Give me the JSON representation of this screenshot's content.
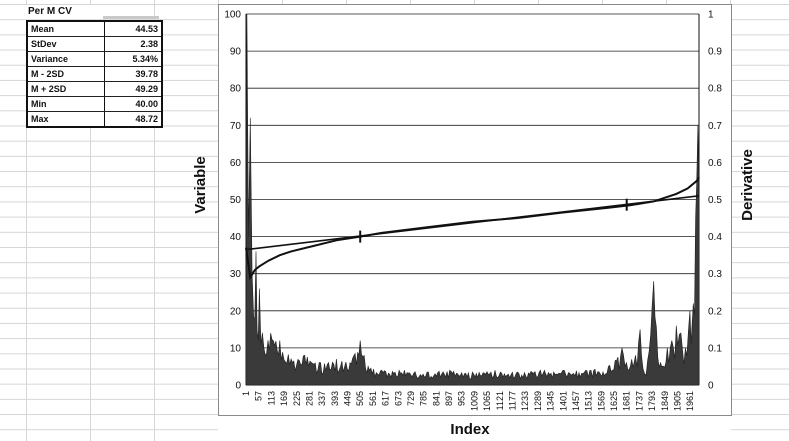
{
  "stats": {
    "title": "Per M CV",
    "rows": [
      {
        "label": "Mean",
        "value": "44.53"
      },
      {
        "label": "StDev",
        "value": "2.38"
      },
      {
        "label": "Variance",
        "value": "5.34%"
      },
      {
        "label": "M - 2SD",
        "value": "39.78"
      },
      {
        "label": "M + 2SD",
        "value": "49.29"
      },
      {
        "label": "Min",
        "value": "40.00"
      },
      {
        "label": "Max",
        "value": "48.72"
      }
    ]
  },
  "chart_data": {
    "type": "line",
    "xlabel": "Index",
    "ylabel": "Variable",
    "y2label": "Derivative",
    "ylim": [
      0,
      100
    ],
    "y2lim": [
      0,
      1
    ],
    "x_range": [
      1,
      2000
    ],
    "grid": true,
    "legend": "none",
    "yticks": [
      "0",
      "10",
      "20",
      "30",
      "40",
      "50",
      "60",
      "70",
      "80",
      "90",
      "100"
    ],
    "y2ticks": [
      "0",
      "0.1",
      "0.2",
      "0.3",
      "0.4",
      "0.5",
      "0.6",
      "0.7",
      "0.8",
      "0.9",
      "1"
    ],
    "xticks": [
      "1",
      "57",
      "113",
      "169",
      "225",
      "281",
      "337",
      "393",
      "449",
      "505",
      "561",
      "617",
      "673",
      "729",
      "785",
      "841",
      "897",
      "953",
      "1009",
      "1065",
      "1121",
      "1177",
      "1233",
      "1289",
      "1345",
      "1401",
      "1457",
      "1513",
      "1569",
      "1625",
      "1681",
      "1737",
      "1793",
      "1849",
      "1905",
      "1961"
    ],
    "series": [
      {
        "role": "variable-sorted",
        "axis": "left",
        "x": [
          1,
          20,
          40,
          60,
          100,
          150,
          200,
          300,
          400,
          505,
          600,
          800,
          1000,
          1200,
          1400,
          1600,
          1700,
          1800,
          1900,
          1950,
          1990,
          2000
        ],
        "y": [
          37,
          29,
          31,
          32,
          33.5,
          35,
          36,
          37.5,
          39,
          40,
          41,
          42.5,
          44,
          45,
          46.5,
          47.8,
          48.5,
          49.5,
          51.5,
          53,
          55,
          56
        ]
      },
      {
        "role": "linear-fit",
        "axis": "left",
        "x": [
          1,
          2000
        ],
        "y": [
          36.5,
          51
        ]
      },
      {
        "role": "derivative",
        "axis": "right",
        "x": [
          1,
          5,
          12,
          20,
          28,
          35,
          45,
          55,
          60,
          80,
          110,
          150,
          200,
          260,
          330,
          400,
          460,
          505,
          540,
          600,
          700,
          800,
          900,
          1000,
          1100,
          1200,
          1300,
          1400,
          1500,
          1600,
          1660,
          1680,
          1720,
          1740,
          1760,
          1780,
          1800,
          1830,
          1860,
          1880,
          1900,
          1920,
          1940,
          1960,
          1975,
          1985,
          1995,
          2000
        ],
        "y": [
          0.15,
          1.0,
          0.4,
          0.72,
          0.3,
          0.18,
          0.36,
          0.12,
          0.26,
          0.1,
          0.14,
          0.12,
          0.07,
          0.08,
          0.06,
          0.07,
          0.06,
          0.12,
          0.05,
          0.04,
          0.04,
          0.035,
          0.04,
          0.035,
          0.04,
          0.035,
          0.04,
          0.04,
          0.04,
          0.05,
          0.1,
          0.06,
          0.08,
          0.15,
          0.03,
          0.09,
          0.28,
          0.06,
          0.1,
          0.12,
          0.16,
          0.14,
          0.1,
          0.2,
          0.22,
          0.45,
          0.7,
          0.5
        ]
      }
    ]
  }
}
